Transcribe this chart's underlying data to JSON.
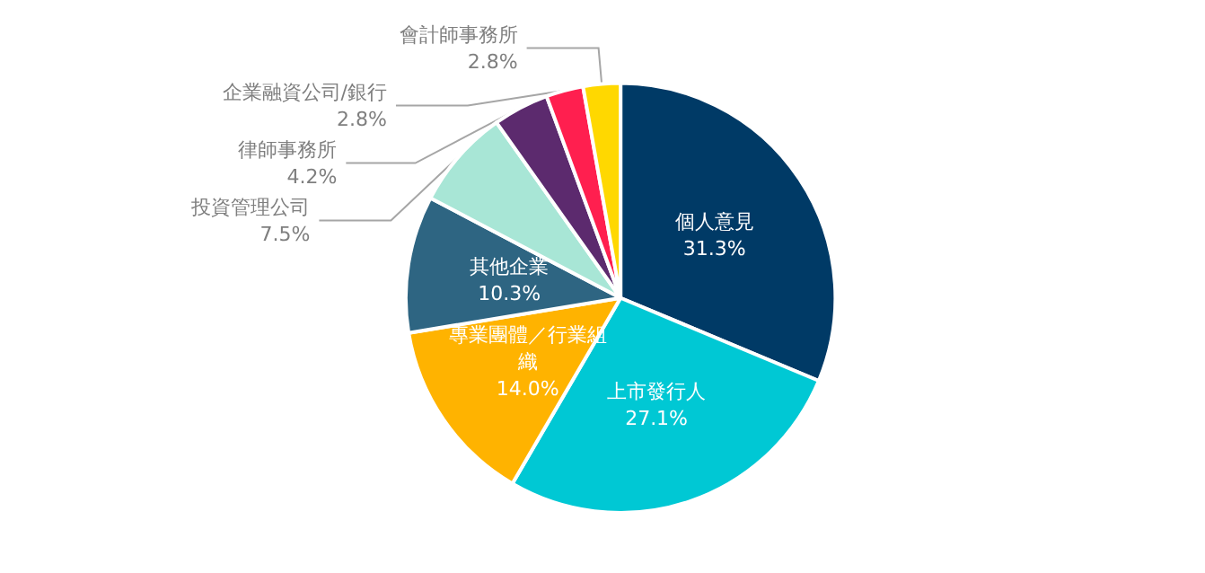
{
  "chart_data": {
    "type": "pie",
    "categories": [
      "個人意見",
      "上市發行人",
      "專業團體／行業組織",
      "其他企業",
      "投資管理公司",
      "律師事務所",
      "企業融資公司/銀行",
      "會計師事務所"
    ],
    "values": [
      31.3,
      27.1,
      14.0,
      10.3,
      7.5,
      4.2,
      2.8,
      2.8
    ],
    "colors": [
      "#003a66",
      "#00c8d4",
      "#ffb300",
      "#2e6582",
      "#a8e6d6",
      "#5c2a6e",
      "#ff1f4f",
      "#ffd800"
    ],
    "value_labels": [
      "31.3%",
      "27.1%",
      "14.0%",
      "10.3%",
      "7.5%",
      "4.2%",
      "2.8%",
      "2.8%"
    ],
    "legend": false
  }
}
